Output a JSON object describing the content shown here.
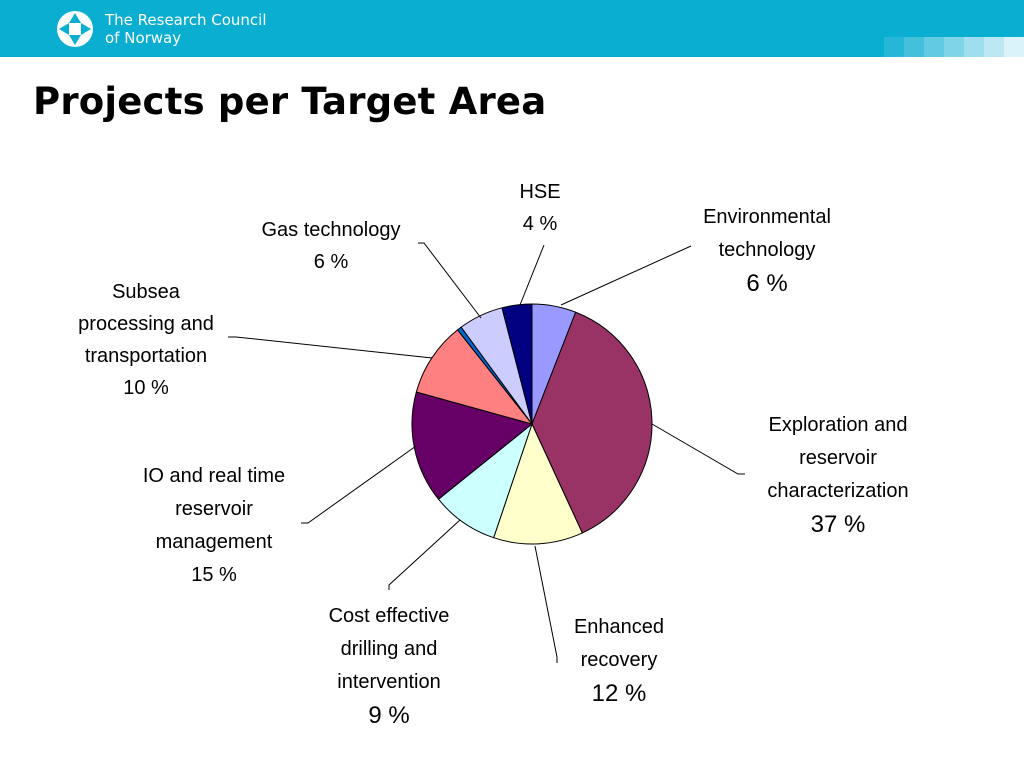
{
  "header": {
    "org_line1": "The Research Council",
    "org_line2": "of Norway",
    "brand_color": "#0aaed0",
    "logo_icon": "research-council-logo-icon"
  },
  "slide": {
    "title": "Projects per Target Area"
  },
  "chart_data": {
    "type": "pie",
    "title": "",
    "legend": "none",
    "start": "12 o'clock, clockwise",
    "slices": [
      {
        "name": "Environmental technology",
        "label_lines": [
          "Environmental",
          "technology"
        ],
        "value_label": "6 %",
        "value": 5.9,
        "color": "#9999ff"
      },
      {
        "name": "Exploration and reservoir characterization",
        "label_lines": [
          "Exploration and",
          "reservoir",
          "characterization"
        ],
        "value_label": "37 %",
        "value": 37.0,
        "color": "#993366"
      },
      {
        "name": "Enhanced recovery",
        "label_lines": [
          "Enhanced",
          "recovery"
        ],
        "value_label": "12 %",
        "value": 12.0,
        "color": "#ffffcc"
      },
      {
        "name": "Cost effective drilling and intervention",
        "label_lines": [
          "Cost effective",
          "drilling and",
          "intervention"
        ],
        "value_label": "9 %",
        "value": 9.0,
        "color": "#ccffff"
      },
      {
        "name": "IO and real time reservoir management",
        "label_lines": [
          "IO and real time",
          "reservoir",
          "management"
        ],
        "value_label": "15 %",
        "value": 15.0,
        "color": "#660066"
      },
      {
        "name": "Subsea processing and transportation",
        "label_lines": [
          "Subsea",
          "processing and",
          "transportation"
        ],
        "value_label": "10 %",
        "value": 10.0,
        "color": "#ff8080"
      },
      {
        "name": "Other",
        "label_lines": [],
        "value_label": "",
        "value": 0.6,
        "color": "#0066cc"
      },
      {
        "name": "Gas technology",
        "label_lines": [
          "Gas technology"
        ],
        "value_label": "6 %",
        "value": 6.0,
        "color": "#ccccff"
      },
      {
        "name": "HSE",
        "label_lines": [
          "HSE"
        ],
        "value_label": "4 %",
        "value": 4.0,
        "color": "#000080"
      }
    ]
  }
}
